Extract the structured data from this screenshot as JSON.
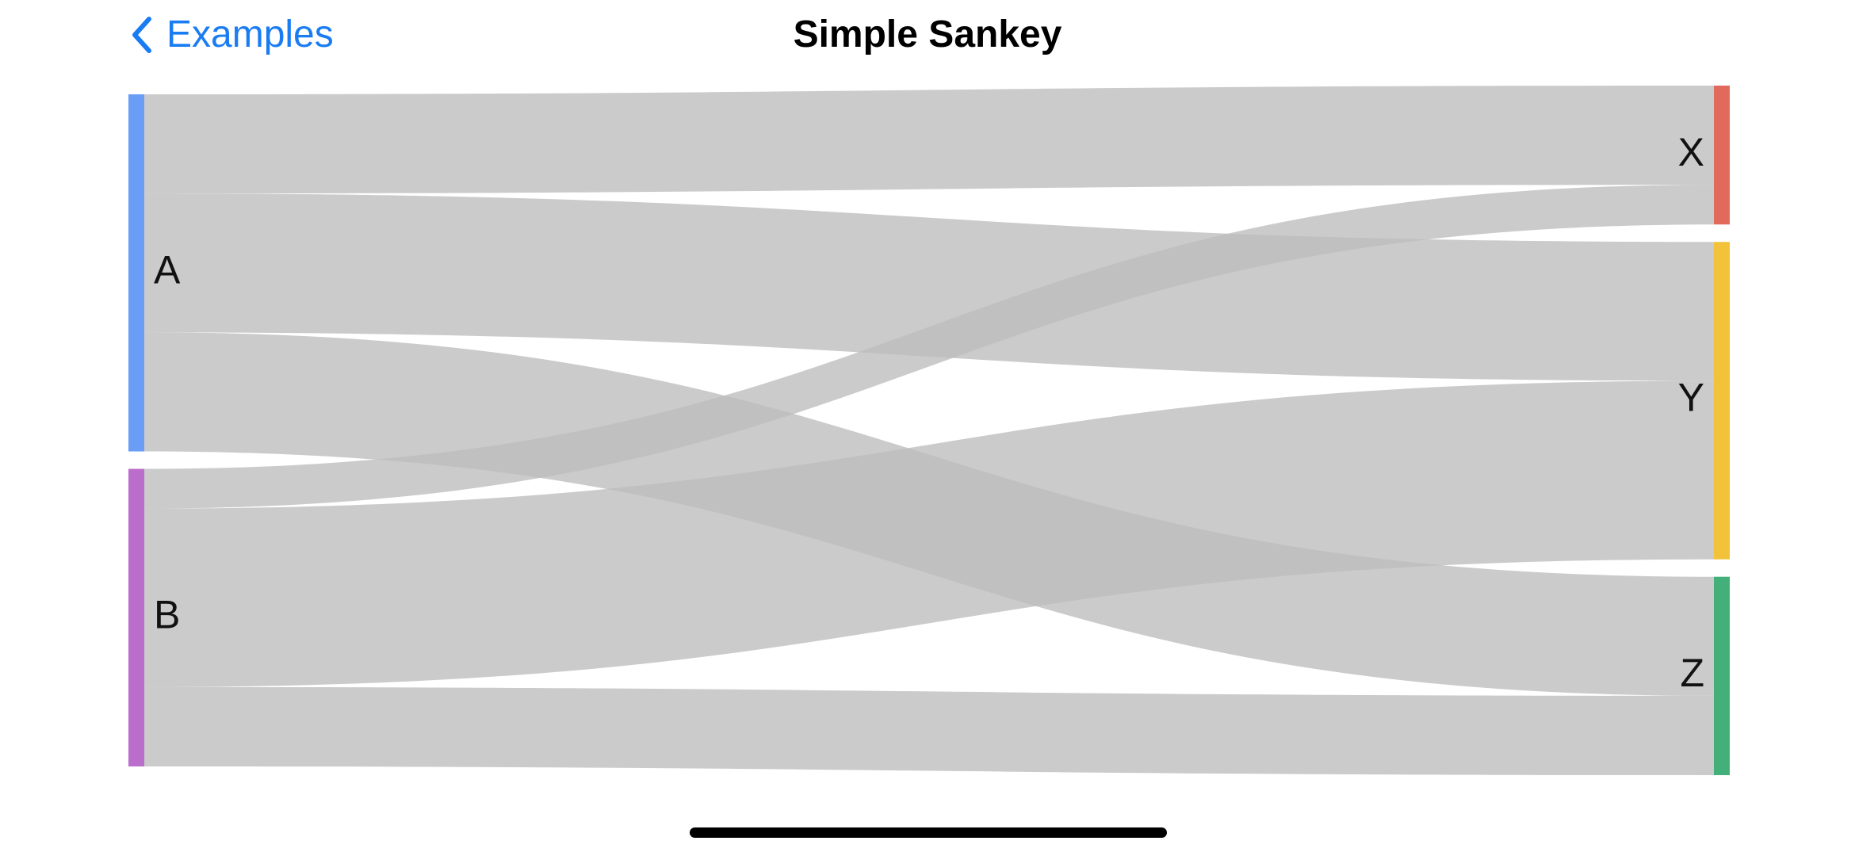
{
  "nav": {
    "back_label": "Examples",
    "title": "Simple Sankey",
    "accent_color": "#1a7cf3"
  },
  "chart_data": {
    "type": "sankey",
    "title": "",
    "link_color": "#bdbdbd",
    "sources": [
      {
        "name": "A",
        "color": "#6a9ef6"
      },
      {
        "name": "B",
        "color": "#bb6dcc"
      }
    ],
    "targets": [
      {
        "name": "X",
        "color": "#e26a5c"
      },
      {
        "name": "Y",
        "color": "#f2c23a"
      },
      {
        "name": "Z",
        "color": "#44b079"
      }
    ],
    "links": [
      {
        "source": "A",
        "target": "X",
        "value": 5
      },
      {
        "source": "A",
        "target": "Y",
        "value": 7
      },
      {
        "source": "A",
        "target": "Z",
        "value": 6
      },
      {
        "source": "B",
        "target": "X",
        "value": 2
      },
      {
        "source": "B",
        "target": "Y",
        "value": 9
      },
      {
        "source": "B",
        "target": "Z",
        "value": 4
      }
    ]
  }
}
